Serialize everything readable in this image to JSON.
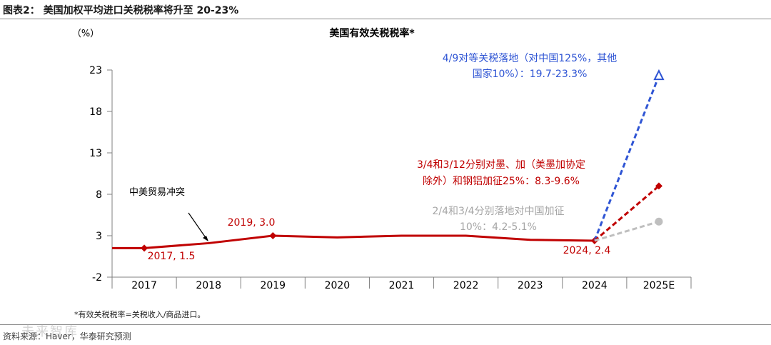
{
  "figure_title": "图表2：  美国加权平均进口关税税率将升至 20-23%",
  "note": "*有效关税税率=关税收入/商品进口。",
  "source": "资料来源：Haver，华泰研究预测",
  "watermark": "未来智库",
  "colors": {
    "actual": "#c00000",
    "blue": "#2f55d4",
    "red": "#c00000",
    "gray": "#bfbfbf",
    "axis": "#808080"
  },
  "chart_data": {
    "type": "line",
    "title": "美国有效关税税率*",
    "ylabel": "（%）",
    "ylim": [
      -2,
      23
    ],
    "yticks": [
      -2,
      3,
      8,
      13,
      18,
      23
    ],
    "categories": [
      "2017",
      "2018",
      "2019",
      "2020",
      "2021",
      "2022",
      "2023",
      "2024",
      "2025E"
    ],
    "series": [
      {
        "name": "actual",
        "x": [
          2016.5,
          2017,
          2018,
          2019,
          2020,
          2021,
          2022,
          2023,
          2024
        ],
        "values": [
          1.5,
          1.5,
          2.1,
          3.0,
          2.8,
          3.0,
          3.0,
          2.5,
          2.4
        ],
        "marker_x": [
          2017,
          2019,
          2024
        ]
      },
      {
        "name": "4/9对等关税落地",
        "x": [
          2024,
          2025
        ],
        "values": [
          2.4,
          22.3
        ],
        "style": "dashed",
        "marker": "triangle"
      },
      {
        "name": "3/4和3/12分别对墨、加",
        "x": [
          2024,
          2025
        ],
        "values": [
          2.4,
          9.0
        ],
        "style": "dashed",
        "marker": "diamond"
      },
      {
        "name": "2/4和3/4分别落地对中国加征",
        "x": [
          2024,
          2025
        ],
        "values": [
          2.4,
          4.7
        ],
        "style": "dashed",
        "marker": "circle"
      }
    ],
    "annotations": {
      "trade_war": "中美贸易冲突",
      "label_2017": "2017, 1.5",
      "label_2019": "2019, 3.0",
      "label_2024": "2024, 2.4",
      "blue_line1": "4/9对等关税落地（对中国125%，其他",
      "blue_line2": "国家10%）：19.7-23.3%",
      "red_line1": "3/4和3/12分别对墨、加（美墨加协定",
      "red_line2": "除外）和钢铝加征25%：8.3-9.6%",
      "gray_line1": "2/4和3/4分别落地对中国加征",
      "gray_line2": "10%：4.2-5.1%"
    }
  }
}
